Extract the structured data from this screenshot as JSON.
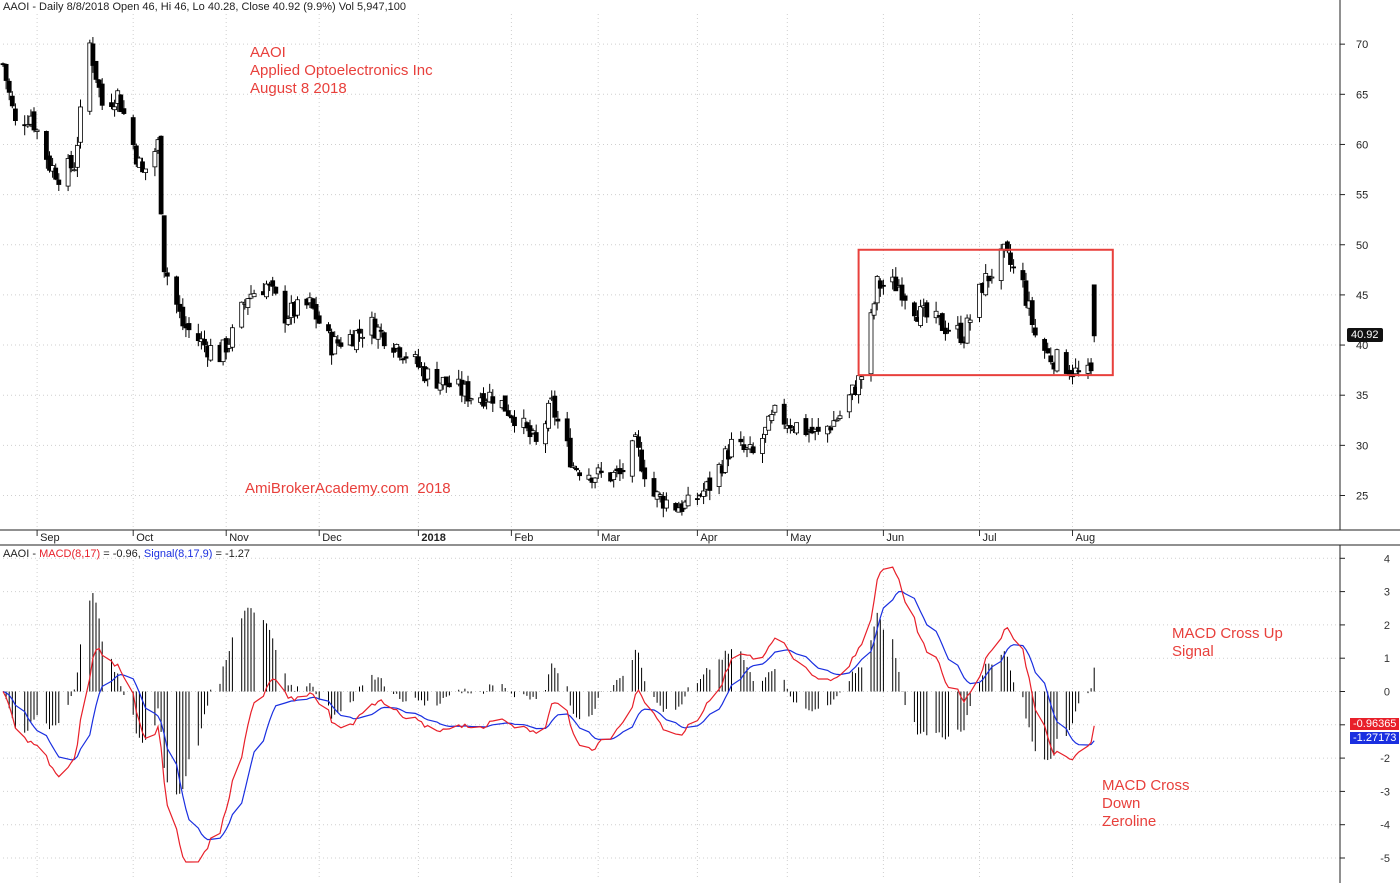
{
  "header": {
    "price_line": "AAOI - Daily 8/8/2018 Open 46, Hi 46, Lo 40.28, Close 40.92 (9.9%) Vol 5,947,100",
    "macd_prefix": "AAOI - ",
    "macd_name": "MACD(8,17)",
    "macd_value": " = -0.96, ",
    "signal_name": "Signal(8,17,9)",
    "signal_value": " = -1.27"
  },
  "annotations": {
    "title_lines": [
      "AAOI",
      "Applied Optoelectronics Inc",
      "August 8 2018"
    ],
    "watermark": "AmiBrokerAcademy.com  2018",
    "cross_up": [
      "MACD Cross Up",
      "Signal"
    ],
    "cross_down": [
      "MACD Cross",
      "Down",
      "Zeroline"
    ]
  },
  "labels": {
    "last_price": "40.92",
    "macd_last": "-0.96365",
    "signal_last": "-1.27173"
  },
  "colors": {
    "annotation": "#e8403c",
    "macd_line": "#e8202a",
    "signal_line": "#1a2fe0",
    "bull_candle": "#ffffff",
    "bear_candle": "#000000",
    "grid": "#cfcfcf",
    "highlight_box": "#e8403c"
  },
  "chart_data": [
    {
      "type": "candlestick",
      "title": "AAOI - Daily 8/8/2018 Open 46, Hi 46, Lo 40.28, Close 40.92 (9.9%) Vol 5,947,100",
      "x_ticks": [
        "Sep",
        "Oct",
        "Nov",
        "Dec",
        "2018",
        "Feb",
        "Mar",
        "Apr",
        "May",
        "Jun",
        "Jul",
        "Aug"
      ],
      "y_ticks": [
        25,
        30,
        35,
        40,
        45,
        50,
        55,
        60,
        65,
        70
      ],
      "ylim": [
        21.5,
        73
      ],
      "last_close": 40.92,
      "price_path": [
        [
          "2017-08-21",
          68
        ],
        [
          "2017-08-25",
          62
        ],
        [
          "2017-08-30",
          63
        ],
        [
          "2017-09-05",
          58
        ],
        [
          "2017-09-08",
          57
        ],
        [
          "2017-09-13",
          58
        ],
        [
          "2017-09-18",
          70
        ],
        [
          "2017-09-22",
          64
        ],
        [
          "2017-09-27",
          65
        ],
        [
          "2017-10-02",
          60
        ],
        [
          "2017-10-05",
          57
        ],
        [
          "2017-10-10",
          60
        ],
        [
          "2017-10-12",
          48
        ],
        [
          "2017-10-18",
          42
        ],
        [
          "2017-10-25",
          40
        ],
        [
          "2017-10-30",
          39
        ],
        [
          "2017-11-03",
          41
        ],
        [
          "2017-11-08",
          45
        ],
        [
          "2017-11-14",
          46
        ],
        [
          "2017-11-20",
          43
        ],
        [
          "2017-11-28",
          44
        ],
        [
          "2017-12-05",
          40
        ],
        [
          "2017-12-12",
          41
        ],
        [
          "2017-12-18",
          42
        ],
        [
          "2017-12-26",
          40
        ],
        [
          "2018-01-05",
          37
        ],
        [
          "2018-01-12",
          36
        ],
        [
          "2018-01-19",
          35
        ],
        [
          "2018-01-26",
          35
        ],
        [
          "2018-02-02",
          33
        ],
        [
          "2018-02-09",
          30
        ],
        [
          "2018-02-14",
          34
        ],
        [
          "2018-02-21",
          28
        ],
        [
          "2018-03-01",
          27
        ],
        [
          "2018-03-08",
          27
        ],
        [
          "2018-03-13",
          30
        ],
        [
          "2018-03-19",
          25
        ],
        [
          "2018-03-26",
          24
        ],
        [
          "2018-03-30",
          24
        ],
        [
          "2018-04-06",
          26
        ],
        [
          "2018-04-13",
          30
        ],
        [
          "2018-04-20",
          29
        ],
        [
          "2018-04-27",
          33
        ],
        [
          "2018-05-04",
          32
        ],
        [
          "2018-05-11",
          31
        ],
        [
          "2018-05-18",
          33
        ],
        [
          "2018-05-25",
          37
        ],
        [
          "2018-05-30",
          46
        ],
        [
          "2018-06-06",
          46
        ],
        [
          "2018-06-13",
          43
        ],
        [
          "2018-06-20",
          42
        ],
        [
          "2018-06-27",
          41
        ],
        [
          "2018-07-03",
          46
        ],
        [
          "2018-07-10",
          49
        ],
        [
          "2018-07-16",
          46
        ],
        [
          "2018-07-20",
          41
        ],
        [
          "2018-07-24",
          39
        ],
        [
          "2018-07-30",
          38
        ],
        [
          "2018-08-03",
          37
        ],
        [
          "2018-08-07",
          37
        ],
        [
          "2018-08-08",
          40.92
        ]
      ],
      "highlight_box": {
        "x": [
          "2018-05-24",
          "2018-08-14"
        ],
        "y": [
          37,
          49.5
        ]
      }
    },
    {
      "type": "line",
      "title": "AAOI - MACD(8,17) = -0.96, Signal(8,17,9) = -1.27",
      "y_ticks": [
        -5,
        -4,
        -3,
        -2,
        -1,
        0,
        1,
        2,
        3,
        4
      ],
      "ylim": [
        -5.4,
        4.2
      ],
      "macd": {
        "name": "MACD(8,17)",
        "last": -0.96365
      },
      "signal": {
        "name": "Signal(8,17,9)",
        "last": -1.27173
      },
      "histogram": "MACD - Signal"
    }
  ]
}
